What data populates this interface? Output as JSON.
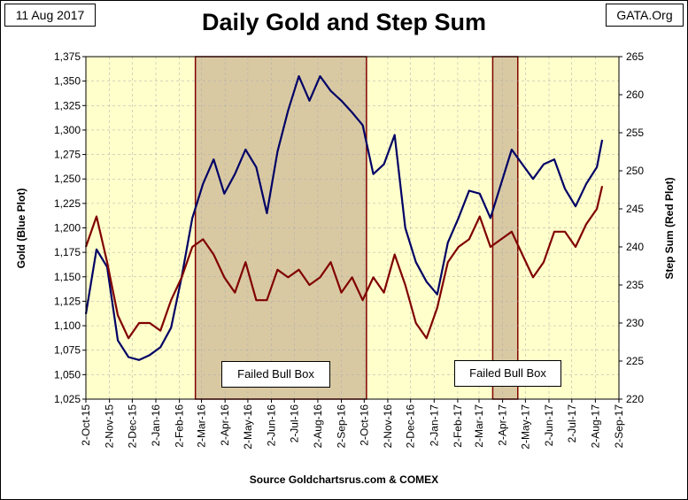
{
  "header": {
    "date": "11 Aug 2017",
    "source_tag": "GATA.Org",
    "title": "Daily Gold and Step Sum",
    "footer": "Source Goldchartsrus.com & COMEX"
  },
  "annotations": {
    "box1_label": "Failed Bull Box",
    "box2_label": "Failed Bull Box"
  },
  "colors": {
    "plot_background": "#ffffcc",
    "shaded_box": "#d9c9a3",
    "gold_line": "#000066",
    "step_sum_line": "#800000",
    "box_border": "#800000",
    "grid": "#aaaaaa"
  },
  "chart_data": {
    "type": "line",
    "title": "Daily Gold and Step Sum",
    "xlabel": "",
    "ylabel_left": "Gold   (Blue Plot)",
    "ylabel_right": "Step Sum   (Red Plot)",
    "ylim_left": [
      1025,
      1375
    ],
    "ylim_right": [
      220,
      265
    ],
    "x_dates": [
      "2015-10-02",
      "2015-10-16",
      "2015-10-30",
      "2015-11-13",
      "2015-11-27",
      "2015-12-11",
      "2015-12-25",
      "2016-01-08",
      "2016-01-22",
      "2016-02-05",
      "2016-02-19",
      "2016-03-04",
      "2016-03-18",
      "2016-04-01",
      "2016-04-15",
      "2016-04-29",
      "2016-05-13",
      "2016-05-27",
      "2016-06-10",
      "2016-06-24",
      "2016-07-08",
      "2016-07-22",
      "2016-08-05",
      "2016-08-19",
      "2016-09-02",
      "2016-09-16",
      "2016-09-30",
      "2016-10-14",
      "2016-10-28",
      "2016-11-11",
      "2016-11-25",
      "2016-12-09",
      "2016-12-23",
      "2017-01-06",
      "2017-01-20",
      "2017-02-03",
      "2017-02-17",
      "2017-03-03",
      "2017-03-17",
      "2017-03-31",
      "2017-04-14",
      "2017-04-28",
      "2017-05-12",
      "2017-05-26",
      "2017-06-09",
      "2017-06-23",
      "2017-07-07",
      "2017-07-21",
      "2017-08-04",
      "2017-08-11"
    ],
    "x_ticks": [
      {
        "label": "2-Oct-15",
        "date": "2015-10-02"
      },
      {
        "label": "2-Nov-15",
        "date": "2015-11-02"
      },
      {
        "label": "2-Dec-15",
        "date": "2015-12-02"
      },
      {
        "label": "2-Jan-16",
        "date": "2016-01-02"
      },
      {
        "label": "2-Feb-16",
        "date": "2016-02-02"
      },
      {
        "label": "2-Mar-16",
        "date": "2016-03-02"
      },
      {
        "label": "2-Apr-16",
        "date": "2016-04-02"
      },
      {
        "label": "2-May-16",
        "date": "2016-05-02"
      },
      {
        "label": "2-Jun-16",
        "date": "2016-06-02"
      },
      {
        "label": "2-Jul-16",
        "date": "2016-07-02"
      },
      {
        "label": "2-Aug-16",
        "date": "2016-08-02"
      },
      {
        "label": "2-Sep-16",
        "date": "2016-09-02"
      },
      {
        "label": "2-Oct-16",
        "date": "2016-10-02"
      },
      {
        "label": "2-Nov-16",
        "date": "2016-11-02"
      },
      {
        "label": "2-Dec-16",
        "date": "2016-12-02"
      },
      {
        "label": "2-Jan-17",
        "date": "2017-01-02"
      },
      {
        "label": "2-Feb-17",
        "date": "2017-02-02"
      },
      {
        "label": "2-Mar-17",
        "date": "2017-03-02"
      },
      {
        "label": "2-Apr-17",
        "date": "2017-04-02"
      },
      {
        "label": "2-May-17",
        "date": "2017-05-02"
      },
      {
        "label": "2-Jun-17",
        "date": "2017-06-02"
      },
      {
        "label": "2-Jul-17",
        "date": "2017-07-02"
      },
      {
        "label": "2-Aug-17",
        "date": "2017-08-02"
      },
      {
        "label": "2-Sep-17",
        "date": "2017-09-02"
      }
    ],
    "x_range": [
      "2015-10-02",
      "2017-09-02"
    ],
    "y_ticks_left": [
      "1,025",
      "1,050",
      "1,075",
      "1,100",
      "1,125",
      "1,150",
      "1,175",
      "1,200",
      "1,225",
      "1,250",
      "1,275",
      "1,300",
      "1,325",
      "1,350",
      "1,375"
    ],
    "y_ticks_right": [
      "220",
      "225",
      "230",
      "235",
      "240",
      "245",
      "250",
      "255",
      "260",
      "265"
    ],
    "shaded_boxes": [
      {
        "name": "box1",
        "start": "2016-02-23",
        "end": "2016-10-05"
      },
      {
        "name": "box2",
        "start": "2017-03-20",
        "end": "2017-04-22"
      }
    ],
    "series": [
      {
        "name": "Gold",
        "axis": "left",
        "values": [
          1112,
          1178,
          1160,
          1085,
          1068,
          1065,
          1070,
          1078,
          1098,
          1150,
          1210,
          1245,
          1270,
          1235,
          1255,
          1280,
          1262,
          1215,
          1278,
          1320,
          1355,
          1330,
          1355,
          1340,
          1330,
          1318,
          1305,
          1255,
          1265,
          1295,
          1200,
          1165,
          1145,
          1132,
          1185,
          1210,
          1238,
          1235,
          1210,
          1245,
          1280,
          1265,
          1250,
          1265,
          1270,
          1240,
          1222,
          1245,
          1262,
          1290
        ],
        "color": "#000066"
      },
      {
        "name": "Step Sum",
        "axis": "right",
        "values": [
          240,
          244,
          238,
          231,
          228,
          230,
          230,
          229,
          233,
          236,
          240,
          241,
          239,
          236,
          234,
          238,
          233,
          233,
          237,
          236,
          237,
          235,
          236,
          238,
          234,
          236,
          233,
          236,
          234,
          239,
          235,
          230,
          228,
          232,
          238,
          240,
          241,
          244,
          240,
          241,
          242,
          239,
          236,
          238,
          242,
          242,
          240,
          243,
          245,
          248
        ],
        "color": "#800000"
      }
    ]
  }
}
